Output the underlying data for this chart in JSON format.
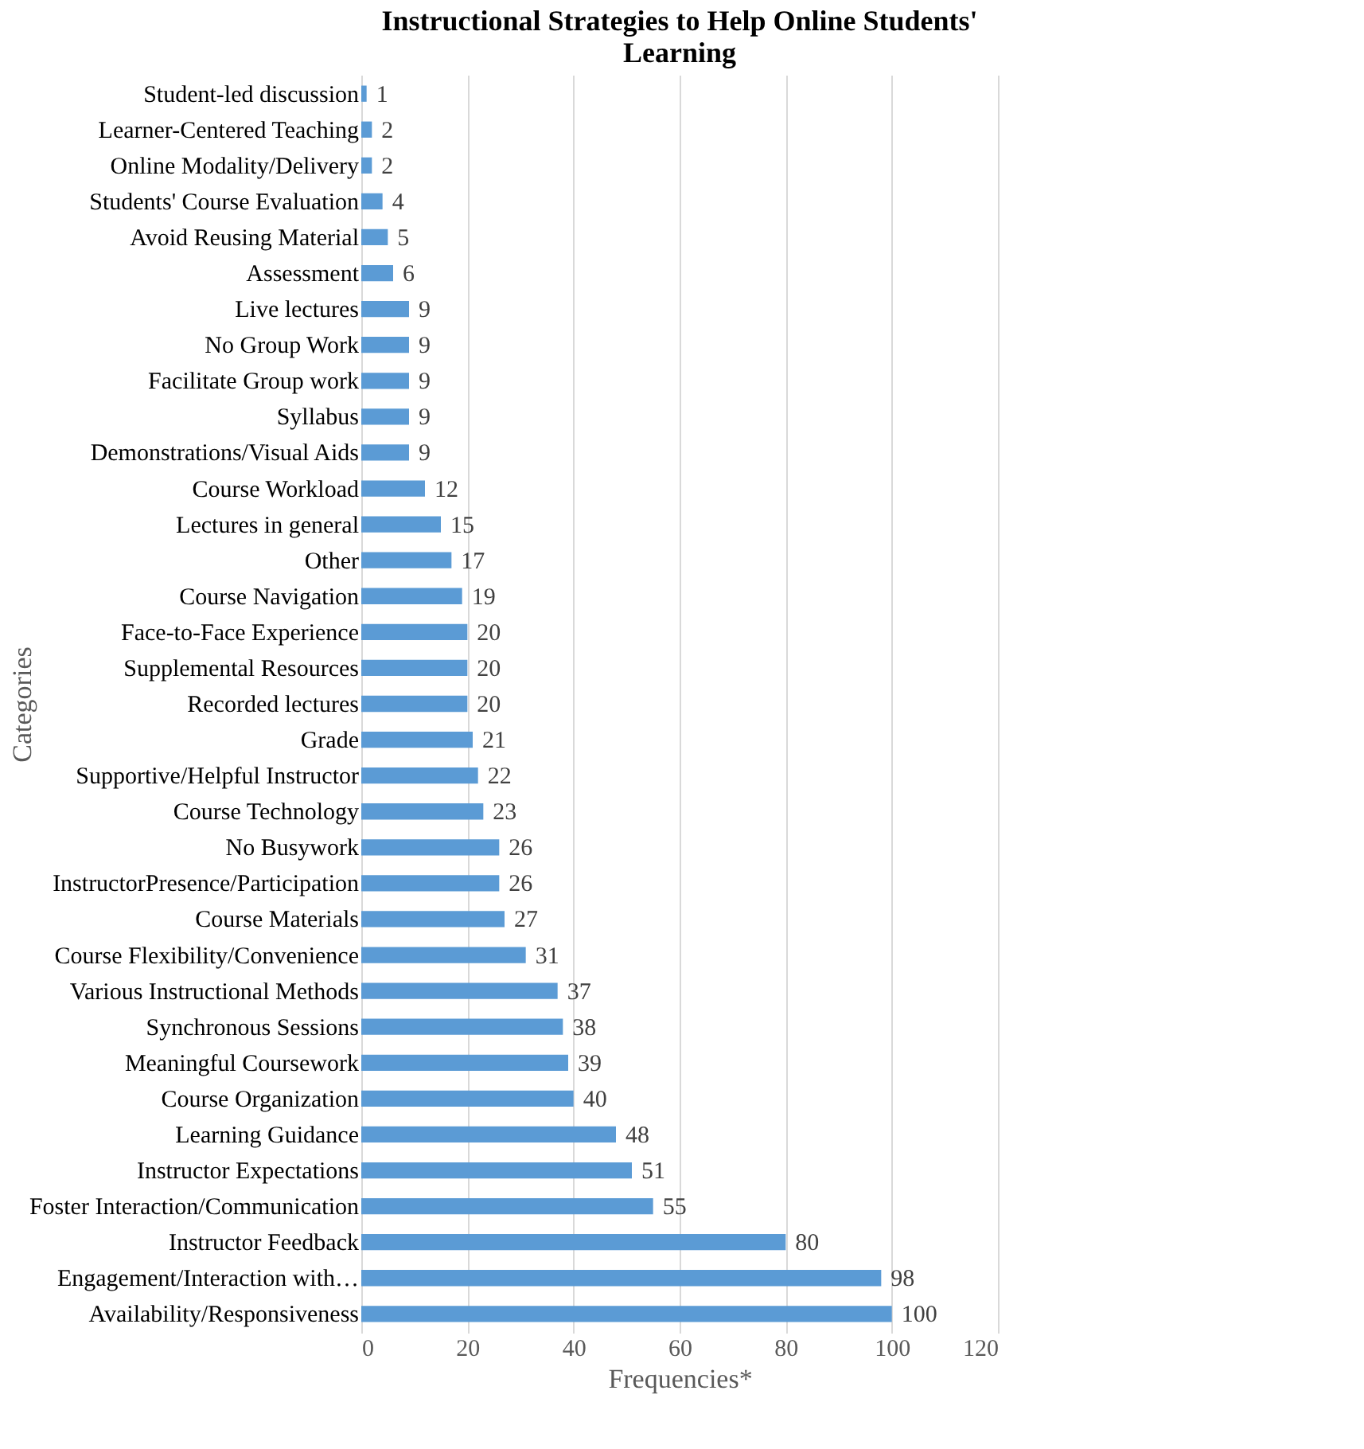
{
  "chart_data": {
    "type": "bar",
    "orientation": "horizontal",
    "title": "Instructional Strategies to Help Online Students' Learning",
    "xlabel": "Frequencies*",
    "ylabel": "Categories",
    "categories": [
      "Student-led discussion",
      "Learner-Centered Teaching",
      "Online Modality/Delivery",
      "Students' Course Evaluation",
      "Avoid Reusing Material",
      "Assessment",
      "Live lectures",
      "No Group Work",
      "Facilitate Group work",
      "Syllabus",
      "Demonstrations/Visual Aids",
      "Course Workload",
      "Lectures in general",
      "Other",
      "Course Navigation",
      "Face-to-Face Experience",
      "Supplemental Resources",
      "Recorded lectures",
      "Grade",
      "Supportive/Helpful Instructor",
      "Course Technology",
      "No Busywork",
      "InstructorPresence/Participation",
      "Course Materials",
      "Course Flexibility/Convenience",
      "Various Instructional Methods",
      "Synchronous Sessions",
      "Meaningful Coursework",
      "Course Organization",
      "Learning Guidance",
      "Instructor Expectations",
      "Foster Interaction/Communication",
      "Instructor Feedback",
      "Engagement/Interaction with…",
      "Availability/Responsiveness"
    ],
    "values": [
      1,
      2,
      2,
      4,
      5,
      6,
      9,
      9,
      9,
      9,
      9,
      12,
      15,
      17,
      19,
      20,
      20,
      20,
      21,
      22,
      23,
      26,
      26,
      27,
      31,
      37,
      38,
      39,
      40,
      48,
      51,
      55,
      80,
      98,
      100
    ],
    "color": "#5b9bd5",
    "xlim": [
      0,
      120
    ],
    "xticks": [
      0,
      20,
      40,
      60,
      80,
      100,
      120
    ],
    "grid": "x",
    "data_labels": true
  }
}
